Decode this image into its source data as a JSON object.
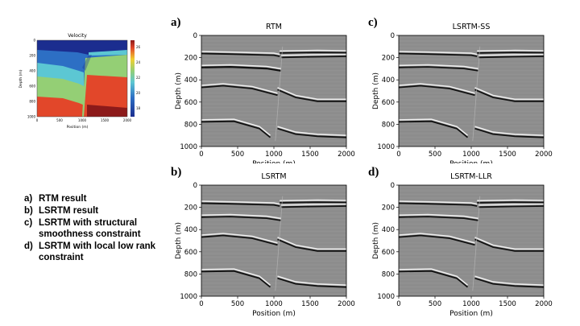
{
  "velocity_panel": {
    "title": "Velocity",
    "xlabel": "Position (m)",
    "ylabel": "Depth (m)",
    "xticks": [
      "0",
      "500",
      "1000",
      "1500",
      "2000"
    ],
    "yticks": [
      "0",
      "200",
      "400",
      "600",
      "800",
      "1000"
    ],
    "colorbar_ticks": [
      "2600",
      "2400",
      "2200",
      "2000",
      "1800"
    ],
    "layer_colors": [
      "#1b2d8f",
      "#2d6fc4",
      "#5cc7d3",
      "#94cf75",
      "#e2472a",
      "#8c1a1a"
    ]
  },
  "descriptions": [
    {
      "key": "a)",
      "text": "RTM result"
    },
    {
      "key": "b)",
      "text": "LSRTM result"
    },
    {
      "key": "c)",
      "text": "LSRTM with structural smoothness constraint"
    },
    {
      "key": "d)",
      "text": "LSRTM with local low rank constraint"
    }
  ],
  "panels": [
    {
      "letter": "a)",
      "title": "RTM"
    },
    {
      "letter": "c)",
      "title": "LSRTM-SS"
    },
    {
      "letter": "b)",
      "title": "LSRTM"
    },
    {
      "letter": "d)",
      "title": "LSRTM-LLR"
    }
  ],
  "axes": {
    "xlabel": "Position (m)",
    "ylabel": "Depth (m)",
    "xticks": [
      "0",
      "500",
      "1000",
      "1500",
      "2000"
    ],
    "yticks": [
      "0",
      "200",
      "400",
      "600",
      "800",
      "1000"
    ]
  }
}
